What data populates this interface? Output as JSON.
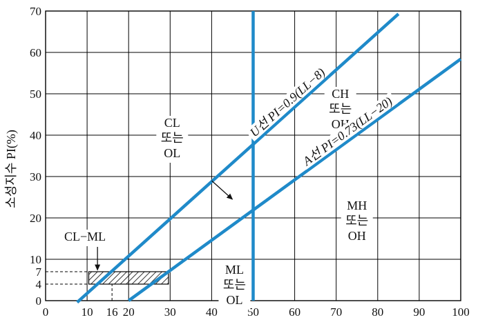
{
  "chart_data": {
    "type": "line",
    "title": "",
    "ylabel": "소성지수 PI(%)",
    "xlabel": "",
    "xlim": [
      0,
      100
    ],
    "ylim": [
      0,
      70
    ],
    "grid": true,
    "x_ticks": [
      0,
      10,
      16,
      20,
      30,
      40,
      50,
      60,
      70,
      80,
      90,
      100
    ],
    "x_tick_labels": [
      "0",
      "10",
      "16",
      "20",
      "30",
      "40",
      "50",
      "60",
      "70",
      "80",
      "90",
      "100"
    ],
    "y_ticks": [
      0,
      4,
      7,
      10,
      20,
      30,
      40,
      50,
      60,
      70
    ],
    "y_tick_labels": [
      "0",
      "4",
      "7",
      "10",
      "20",
      "30",
      "40",
      "50",
      "60",
      "70"
    ],
    "colors": {
      "line": "#1f8ac9",
      "grid": "#000000",
      "hatch": "#000000"
    },
    "series": [
      {
        "label": "U선 PI=0.9(LL−8)",
        "slope": 0.9,
        "offset": 8,
        "x": [
          7.6,
          85
        ],
        "y": [
          -0.4,
          69.3
        ]
      },
      {
        "label": "A선 PI=0.73(LL−20)",
        "slope": 0.73,
        "offset": 20,
        "x": [
          20,
          100
        ],
        "y": [
          0,
          58.4
        ]
      },
      {
        "label": "LL=50",
        "x": [
          50,
          50
        ],
        "y": [
          0,
          70
        ]
      }
    ],
    "hatched_band": {
      "x_range": [
        10.4,
        29.6
      ],
      "y_range": [
        4,
        7
      ]
    },
    "reference_lines": [
      {
        "x_from": 0,
        "x_to": 10.4,
        "y": 7
      },
      {
        "x_from": 0,
        "x_to": 16,
        "y": 4
      },
      {
        "x": 16,
        "y_from": 0,
        "y_to": 4
      }
    ],
    "regions": [
      {
        "id": "cl-ol",
        "lines": [
          "CL",
          "또는",
          "OL"
        ],
        "x": 30.5,
        "y": 42
      },
      {
        "id": "ch-oh",
        "lines": [
          "CH",
          "또는",
          "OH"
        ],
        "x": 71,
        "y": 49
      },
      {
        "id": "mh-oh",
        "lines": [
          "MH",
          "또는",
          "OH"
        ],
        "x": 75,
        "y": 22
      },
      {
        "id": "ml-ol",
        "lines": [
          "ML",
          "또는",
          "OL"
        ],
        "x": 45.5,
        "y": 6.5
      },
      {
        "id": "cl-ml",
        "lines": [
          "CL−ML"
        ],
        "x": 9.5,
        "y": 14.5
      }
    ],
    "annotations": [
      {
        "id": "cl-ol-arrow",
        "from": [
          40,
          29
        ],
        "to": [
          45,
          24.5
        ]
      },
      {
        "id": "cl-ml-arrow",
        "from": [
          12.5,
          13
        ],
        "to": [
          12.5,
          7.4
        ]
      }
    ]
  }
}
